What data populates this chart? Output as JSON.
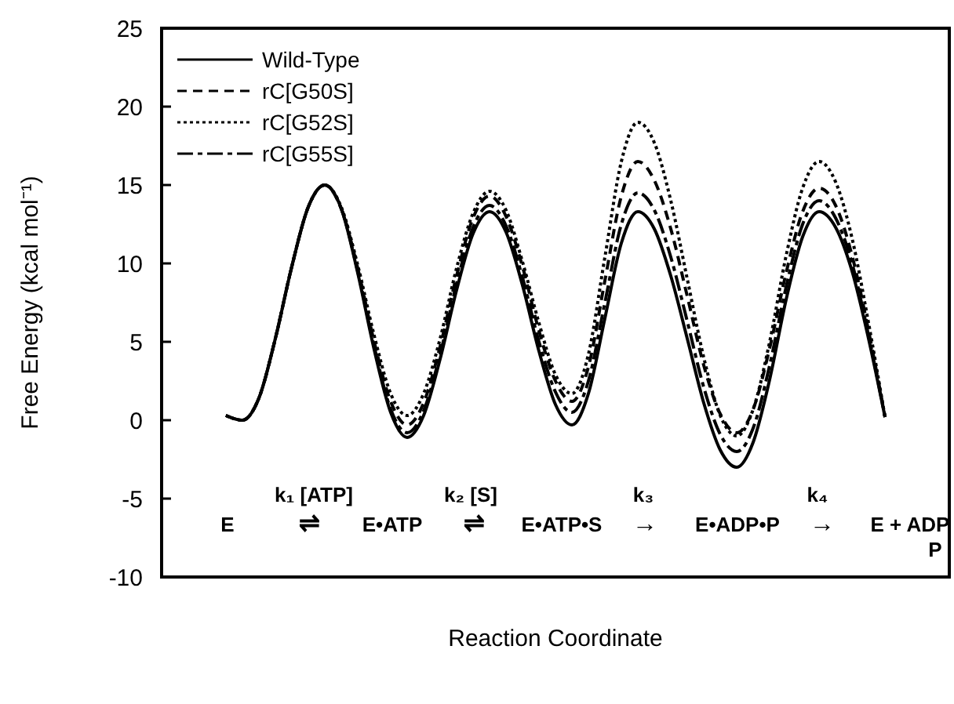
{
  "chart_data": {
    "type": "line",
    "xlabel": "Reaction Coordinate",
    "ylabel": "Free Energy (kcal mol⁻¹)",
    "categories": [
      null,
      null,
      null,
      null,
      null,
      null,
      null,
      null,
      null,
      null,
      null,
      null,
      null,
      null,
      null,
      null,
      null,
      null,
      null,
      null,
      null,
      null,
      null,
      null,
      null,
      null,
      null,
      null,
      null,
      null,
      null,
      null,
      null,
      null,
      null,
      null,
      null,
      null,
      null,
      null,
      null
    ],
    "ylim": [
      -10,
      25
    ],
    "yticks": [
      -10,
      -5,
      0,
      5,
      10,
      15,
      20,
      25
    ],
    "grid": false,
    "legend": "top left",
    "marker": "none",
    "series": [
      {
        "name": "Wild-Type",
        "color": "#000000",
        "line_style": "solid",
        "values": [
          0.3,
          0,
          1.4,
          5.2,
          9.8,
          13.6,
          15,
          13.5,
          9.4,
          4.5,
          0.5,
          -1.1,
          0.3,
          3.9,
          8.3,
          11.9,
          13.3,
          12.0,
          8.6,
          4.4,
          1.0,
          -0.3,
          1.7,
          6.5,
          11.3,
          13.3,
          12.2,
          9.2,
          5.2,
          1.1,
          -1.9,
          -3.0,
          -1.4,
          2.6,
          7.7,
          11.7,
          13.3,
          12.3,
          9.5,
          5.2,
          0.2
        ]
      },
      {
        "name": "rC[G50S]",
        "color": "#000000",
        "line_style": "dashed",
        "values": [
          0.3,
          0,
          1.4,
          5.2,
          9.8,
          13.6,
          15,
          13.5,
          9.7,
          5.0,
          1.2,
          -0.3,
          1.1,
          4.7,
          9.2,
          12.9,
          14.3,
          13.0,
          9.8,
          5.7,
          2.5,
          1.2,
          3.4,
          8.9,
          14.3,
          16.5,
          15.3,
          12.2,
          7.9,
          3.5,
          0.4,
          -0.8,
          0.7,
          4.6,
          9.4,
          13.3,
          14.8,
          13.7,
          10.5,
          5.7,
          0.2
        ]
      },
      {
        "name": "rC[G52S]",
        "color": "#000000",
        "line_style": "dotted",
        "values": [
          0.3,
          0,
          1.4,
          5.2,
          9.8,
          13.6,
          15,
          13.6,
          9.9,
          5.4,
          1.7,
          0.3,
          1.7,
          5.2,
          9.7,
          13.2,
          14.6,
          13.4,
          10.1,
          6.2,
          2.9,
          1.7,
          4.2,
          10.4,
          16.5,
          19.0,
          17.7,
          14.0,
          9.0,
          4.0,
          0.3,
          -1.0,
          0.7,
          5.0,
          10.5,
          14.8,
          16.5,
          15.2,
          11.6,
          6.2,
          0.2
        ]
      },
      {
        "name": "rC[G55S]",
        "color": "#000000",
        "line_style": "dashdot",
        "values": [
          0.3,
          0,
          1.4,
          5.2,
          9.8,
          13.6,
          15,
          13.5,
          9.5,
          4.7,
          0.7,
          -0.8,
          0.6,
          4.2,
          8.7,
          12.3,
          13.7,
          12.4,
          9.1,
          5.0,
          1.8,
          0.5,
          2.5,
          7.5,
          12.5,
          14.5,
          13.4,
          10.4,
          6.3,
          2.1,
          -0.9,
          -2.0,
          -0.5,
          3.5,
          8.5,
          12.5,
          14.0,
          12.9,
          10.0,
          5.4,
          0.2
        ]
      }
    ],
    "annotations": [
      "k₁ [ATP]",
      "k₂ [S]",
      "k₃",
      "k₄",
      "E",
      "⇌",
      "E•ATP",
      "⇌",
      "E•ATP•S",
      "→",
      "E•ADP•P",
      "→",
      "E + ADP",
      "P"
    ]
  }
}
